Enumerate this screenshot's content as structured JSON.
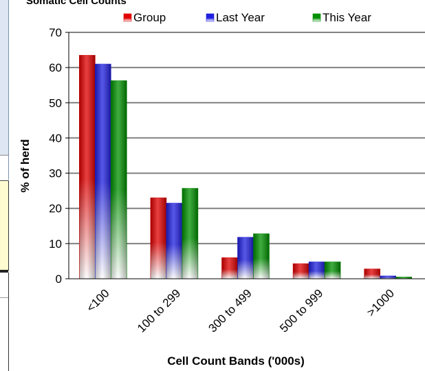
{
  "chart_data": {
    "type": "bar",
    "title": "Somatic Cell Counts",
    "xlabel": "Cell Count Bands ('000s)",
    "ylabel": "% of herd",
    "ylim": [
      0,
      70
    ],
    "yticks": [
      0,
      10,
      20,
      30,
      40,
      50,
      60,
      70
    ],
    "grid": true,
    "legend_position": "top",
    "categories": [
      "<100",
      "100 to 299",
      "300 to 499",
      "500 to 999",
      ">1000"
    ],
    "series": [
      {
        "name": "Group",
        "color": "#e00000",
        "values": [
          63.5,
          23,
          6,
          4.3,
          2.8
        ]
      },
      {
        "name": "Last Year",
        "color": "#2020e0",
        "values": [
          61,
          21.5,
          11.8,
          4.8,
          0.8
        ]
      },
      {
        "name": "This Year",
        "color": "#009000",
        "values": [
          56.3,
          25.7,
          12.8,
          4.8,
          0.5
        ]
      }
    ]
  },
  "colors": {
    "gridline": "#808080",
    "plot_background": "#ffffff"
  }
}
